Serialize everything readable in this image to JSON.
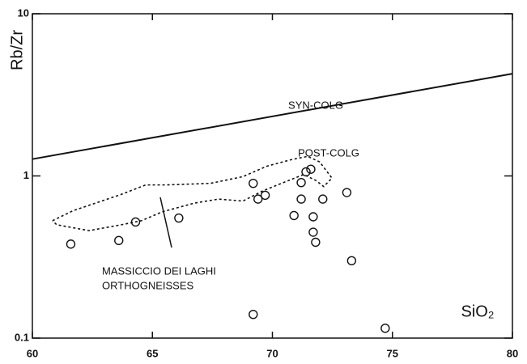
{
  "chart_data": {
    "type": "scatter",
    "xlim": [
      60,
      80
    ],
    "xticks": [
      60,
      65,
      70,
      75,
      80
    ],
    "ylim": [
      0.1,
      10
    ],
    "yticks": [
      0.1,
      1,
      10
    ],
    "log_y": true,
    "color": "#111111",
    "x_label": "SiO₂",
    "y_label": "Rb/Zr",
    "points": {
      "x": [
        61.6,
        63.6,
        64.3,
        66.1,
        69.2,
        69.4,
        69.7,
        69.2,
        70.9,
        71.2,
        71.2,
        71.4,
        71.6,
        71.7,
        71.7,
        71.8,
        72.1,
        73.1,
        73.3,
        74.7
      ],
      "y": [
        0.38,
        0.4,
        0.52,
        0.55,
        0.9,
        0.72,
        0.76,
        0.14,
        0.57,
        0.72,
        0.91,
        1.06,
        1.1,
        0.56,
        0.45,
        0.39,
        0.72,
        0.79,
        0.3,
        0.115
      ]
    },
    "boundary": {
      "x": [
        60,
        80
      ],
      "y": [
        1.27,
        4.27
      ]
    },
    "field": {
      "x": [
        60.84,
        61.69,
        63.71,
        64.72,
        65.56,
        67.42,
        68.77,
        69.78,
        70.79,
        71.47,
        71.97,
        72.48,
        72.14,
        71.8,
        71.3,
        70.46,
        69.61,
        68.77,
        67.76,
        66.75,
        65.4,
        64.55,
        63.71,
        62.36,
        61.01,
        60.84
      ],
      "y": [
        0.53,
        0.61,
        0.77,
        0.88,
        0.88,
        0.9,
        0.99,
        1.15,
        1.26,
        1.32,
        1.22,
        0.97,
        0.86,
        0.94,
        1.02,
        0.91,
        0.81,
        0.7,
        0.72,
        0.68,
        0.6,
        0.53,
        0.5,
        0.46,
        0.5,
        0.53
      ]
    },
    "annotations": [
      "SYN-COLG",
      "POST-COLG",
      "MASSICCIO DEI LAGHI",
      "ORTHOGNEISSES"
    ]
  }
}
